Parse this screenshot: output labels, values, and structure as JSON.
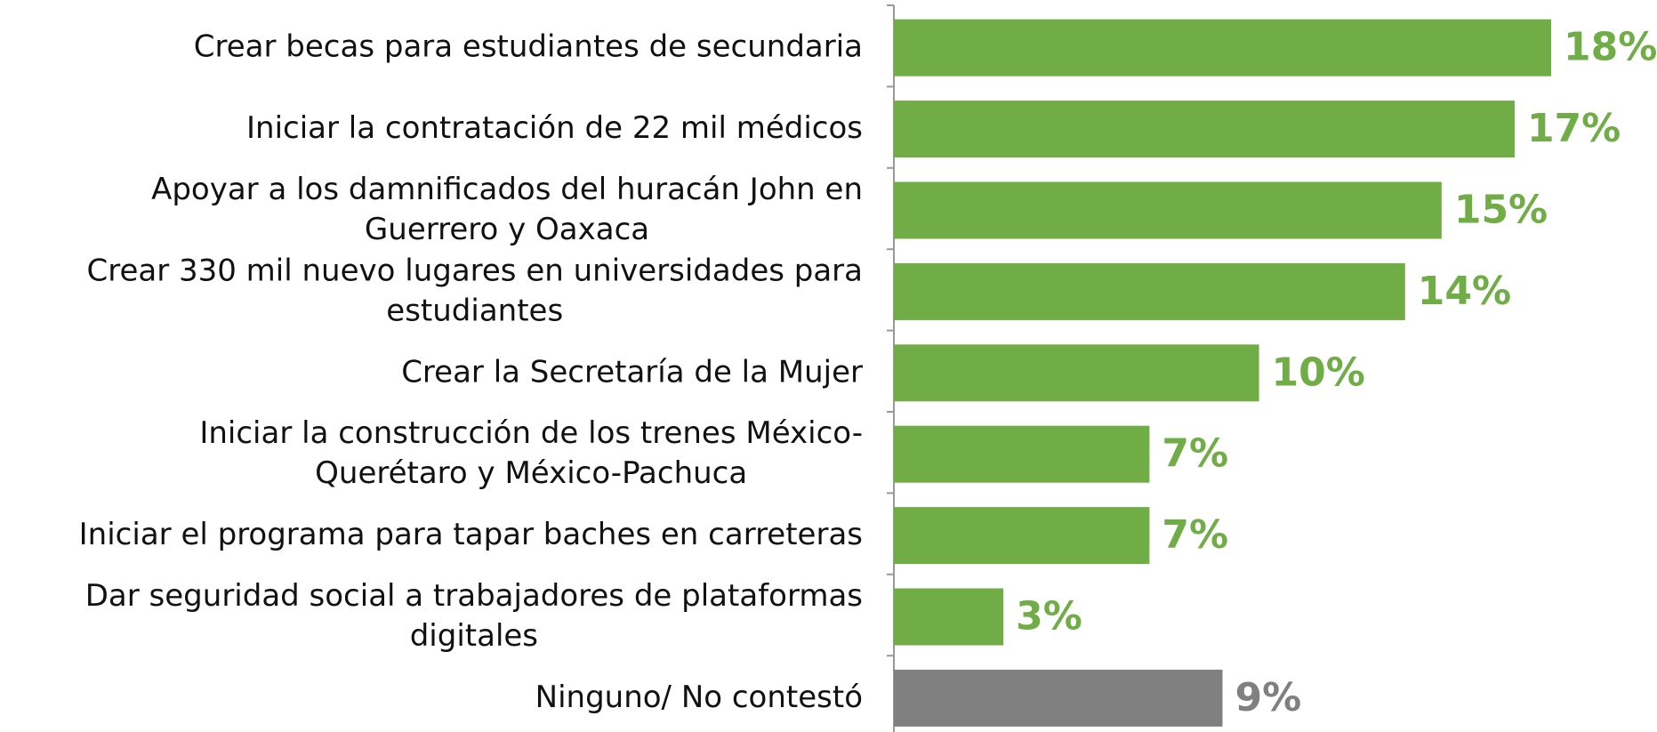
{
  "chart_data": {
    "type": "bar",
    "orientation": "horizontal",
    "categories": [
      "Crear becas para estudiantes de secundaria",
      "Iniciar la contratación de 22 mil médicos",
      "Apoyar a los damnificados del huracán John en\nGuerrero y Oaxaca",
      "Crear 330 mil nuevo lugares en universidades para\nestudiantes",
      "Crear la Secretaría de la Mujer",
      "Iniciar la construcción de los trenes México-\nQuerétaro y México-Pachuca",
      "Iniciar el programa para tapar baches en carreteras",
      "Dar seguridad social a trabajadores de plataformas\ndigitales",
      "Ninguno/ No contestó"
    ],
    "values": [
      18,
      17,
      15,
      14,
      10,
      7,
      7,
      3,
      9
    ],
    "value_labels": [
      "18%",
      "17%",
      "15%",
      "14%",
      "10%",
      "7%",
      "7%",
      "3%",
      "9%"
    ],
    "colors": [
      "#70ad47",
      "#70ad47",
      "#70ad47",
      "#70ad47",
      "#70ad47",
      "#70ad47",
      "#70ad47",
      "#70ad47",
      "#808080"
    ]
  }
}
